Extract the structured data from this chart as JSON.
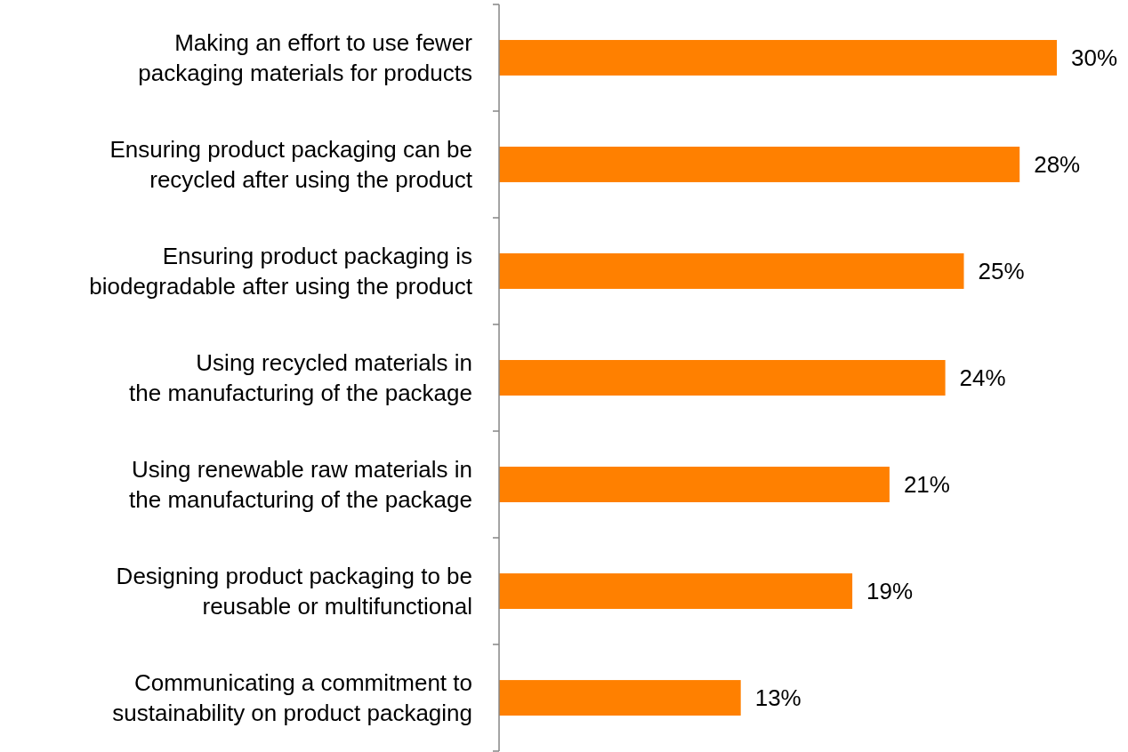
{
  "chart_data": {
    "type": "bar",
    "orientation": "horizontal",
    "categories": [
      "Making an effort to use fewer\npackaging materials for products",
      "Ensuring product packaging can be\nrecycled after using the product",
      "Ensuring product packaging is\nbiodegradable after using the product",
      "Using recycled materials in\nthe manufacturing of the package",
      "Using renewable raw materials in\nthe manufacturing of the package",
      "Designing product packaging to be\nreusable or multifunctional",
      "Communicating a commitment to\nsustainability on product packaging"
    ],
    "values": [
      30,
      28,
      25,
      24,
      21,
      19,
      13
    ],
    "value_labels": [
      "30%",
      "28%",
      "25%",
      "24%",
      "21%",
      "19%",
      "13%"
    ],
    "color": "#ff8000"
  }
}
